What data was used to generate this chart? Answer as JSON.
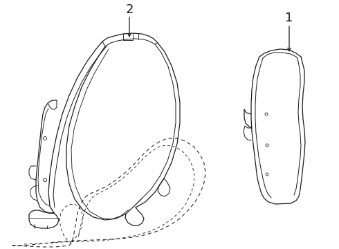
{
  "background_color": "#ffffff",
  "line_color": "#1a1a1a",
  "label1": "1",
  "label2": "2",
  "lw_main": 0.9,
  "lw_thin": 0.65,
  "lw_dash": 0.75
}
